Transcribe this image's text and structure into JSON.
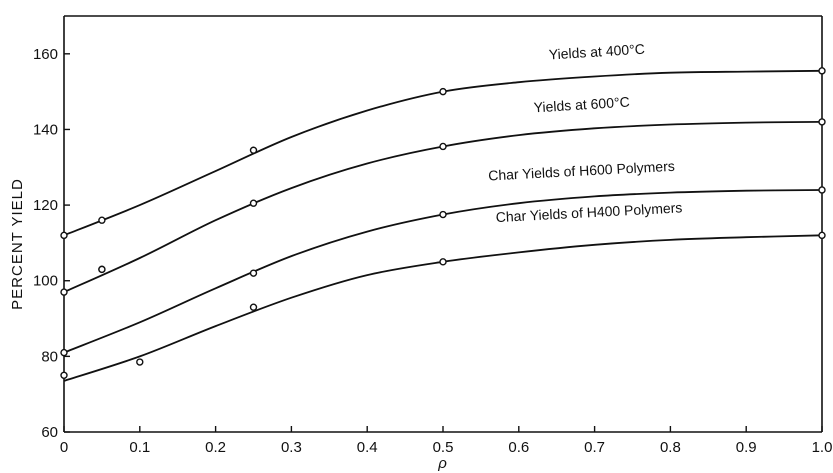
{
  "chart_data": {
    "type": "line",
    "xlabel": "ρ",
    "ylabel": "PERCENT  YIELD",
    "xlim": [
      0,
      1.0
    ],
    "ylim": [
      60,
      170
    ],
    "x_ticks": [
      0,
      0.1,
      0.2,
      0.3,
      0.4,
      0.5,
      0.6,
      0.7,
      0.8,
      0.9,
      1.0
    ],
    "x_tick_labels": [
      "0",
      "0.1",
      "0.2",
      "0.3",
      "0.4",
      "0.5",
      "0.6",
      "0.7",
      "0.8",
      "0.9",
      "1.0"
    ],
    "y_ticks": [
      60,
      80,
      100,
      120,
      140,
      160
    ],
    "y_tick_labels": [
      "60",
      "80",
      "100",
      "120",
      "140",
      "160"
    ],
    "grid": false,
    "series": [
      {
        "name": "Yields at 400°C",
        "points": [
          [
            0,
            112
          ],
          [
            0.05,
            116
          ],
          [
            0.25,
            134.5
          ],
          [
            0.5,
            150
          ],
          [
            1.0,
            155.5
          ]
        ],
        "curve": [
          [
            0,
            112
          ],
          [
            0.1,
            120
          ],
          [
            0.2,
            129
          ],
          [
            0.3,
            138
          ],
          [
            0.4,
            145
          ],
          [
            0.5,
            150
          ],
          [
            0.6,
            152.5
          ],
          [
            0.7,
            154
          ],
          [
            0.8,
            155
          ],
          [
            0.9,
            155.3
          ],
          [
            1.0,
            155.5
          ]
        ]
      },
      {
        "name": "Yields at 600°C",
        "points": [
          [
            0,
            97
          ],
          [
            0.05,
            103
          ],
          [
            0.25,
            120.5
          ],
          [
            0.5,
            135.5
          ],
          [
            1.0,
            142
          ]
        ],
        "curve": [
          [
            0,
            97
          ],
          [
            0.1,
            106
          ],
          [
            0.2,
            116
          ],
          [
            0.3,
            124.5
          ],
          [
            0.4,
            131
          ],
          [
            0.5,
            135.5
          ],
          [
            0.6,
            138.5
          ],
          [
            0.7,
            140.3
          ],
          [
            0.8,
            141.3
          ],
          [
            0.9,
            141.8
          ],
          [
            1.0,
            142
          ]
        ]
      },
      {
        "name": "Char Yields of H600 Polymers",
        "points": [
          [
            0,
            81
          ],
          [
            0.05,
            103
          ],
          [
            0.25,
            102
          ],
          [
            0.5,
            117.5
          ],
          [
            1.0,
            124
          ]
        ],
        "curve": [
          [
            0,
            81
          ],
          [
            0.1,
            89
          ],
          [
            0.2,
            98
          ],
          [
            0.3,
            106.5
          ],
          [
            0.4,
            113
          ],
          [
            0.5,
            117.5
          ],
          [
            0.6,
            120.5
          ],
          [
            0.7,
            122.3
          ],
          [
            0.8,
            123.3
          ],
          [
            0.9,
            123.8
          ],
          [
            1.0,
            124
          ]
        ]
      },
      {
        "name": "Char Yields of H400 Polymers",
        "points": [
          [
            0,
            75
          ],
          [
            0.1,
            78.5
          ],
          [
            0.25,
            93
          ],
          [
            0.5,
            105
          ],
          [
            1.0,
            112
          ]
        ],
        "curve": [
          [
            0,
            73.5
          ],
          [
            0.1,
            80
          ],
          [
            0.2,
            88
          ],
          [
            0.3,
            95.5
          ],
          [
            0.4,
            101.5
          ],
          [
            0.5,
            105
          ],
          [
            0.6,
            107.5
          ],
          [
            0.7,
            109.5
          ],
          [
            0.8,
            110.8
          ],
          [
            0.9,
            111.5
          ],
          [
            1.0,
            112
          ]
        ]
      }
    ]
  }
}
